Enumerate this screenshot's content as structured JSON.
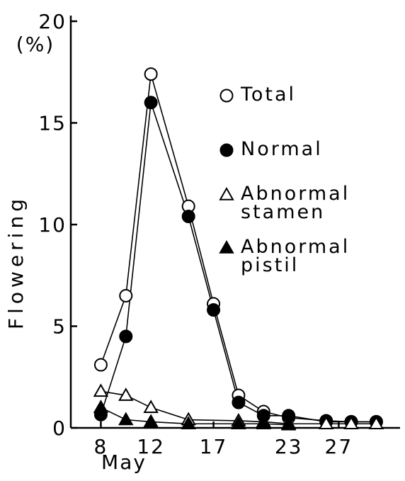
{
  "chart_data": {
    "type": "line",
    "y_label": "Flowering",
    "y_unit": "(%)",
    "x_label": "May",
    "xlim": [
      5.6,
      31.9
    ],
    "xticks": [
      8,
      12,
      17,
      23,
      27
    ],
    "ylim": [
      0,
      20
    ],
    "yticks": [
      0,
      5,
      10,
      15,
      20
    ],
    "series": [
      {
        "name": "Total",
        "color": "#000",
        "marker": "open-circle",
        "x": [
          8,
          10,
          12,
          15,
          17,
          19,
          21,
          23,
          26,
          28,
          30
        ],
        "values": [
          3.1,
          6.5,
          17.4,
          10.9,
          6.1,
          1.6,
          0.8,
          0.5,
          0.35,
          0.3,
          0.3
        ]
      },
      {
        "name": "Normal",
        "color": "#000",
        "marker": "filled-circle",
        "x": [
          8,
          10,
          12,
          15,
          17,
          19,
          21,
          23,
          26,
          28,
          30
        ],
        "values": [
          0.65,
          4.5,
          16.0,
          10.4,
          5.8,
          1.25,
          0.6,
          0.6,
          0.3,
          0.3,
          0.3
        ]
      },
      {
        "name": "Abnormal stamen",
        "color": "#000",
        "marker": "open-triangle",
        "x": [
          8,
          10,
          12,
          15,
          19,
          21,
          23,
          26,
          28,
          30
        ],
        "values": [
          1.8,
          1.6,
          1.0,
          0.4,
          0.35,
          0.3,
          0.2,
          0.2,
          0.2,
          0.2
        ]
      },
      {
        "name": "Abnormal pistil",
        "color": "#000",
        "marker": "filled-triangle",
        "x": [
          8,
          10,
          12,
          15,
          19,
          21,
          23
        ],
        "values": [
          1.0,
          0.4,
          0.3,
          0.2,
          0.2,
          0.2,
          0.15
        ]
      }
    ]
  }
}
